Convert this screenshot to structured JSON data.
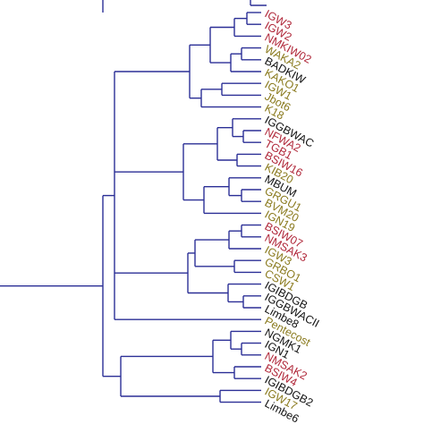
{
  "colors": {
    "branch": "#2b2f96",
    "label_black": "#111111",
    "label_red": "#b0283a",
    "label_olive": "#8a7a1e"
  },
  "leaves": [
    {
      "label": "IGW3",
      "color": "red"
    },
    {
      "label": "IGW2",
      "color": "red"
    },
    {
      "label": "NMKIW02",
      "color": "red"
    },
    {
      "label": "WAKA2",
      "color": "olive"
    },
    {
      "label": "BADKIW",
      "color": "black"
    },
    {
      "label": "KAKO1",
      "color": "olive"
    },
    {
      "label": "IGW1",
      "color": "olive"
    },
    {
      "label": "Jbot6",
      "color": "olive"
    },
    {
      "label": "K18",
      "color": "olive"
    },
    {
      "label": "IGGBWAC",
      "color": "black"
    },
    {
      "label": "NFWA2",
      "color": "red"
    },
    {
      "label": "TGB1",
      "color": "red"
    },
    {
      "label": "BSIW16",
      "color": "red"
    },
    {
      "label": "KIB20",
      "color": "olive"
    },
    {
      "label": "MBUM",
      "color": "black"
    },
    {
      "label": "GRGU1",
      "color": "olive"
    },
    {
      "label": "BVM20",
      "color": "olive"
    },
    {
      "label": "IGN19",
      "color": "olive"
    },
    {
      "label": "BSIW07",
      "color": "red"
    },
    {
      "label": "NMSAK3",
      "color": "red"
    },
    {
      "label": "IGW3",
      "color": "olive"
    },
    {
      "label": "GRBO1",
      "color": "olive"
    },
    {
      "label": "CSW1",
      "color": "olive"
    },
    {
      "label": "IGIBDGB",
      "color": "black"
    },
    {
      "label": "IGGBWACII",
      "color": "black"
    },
    {
      "label": "Limbe8",
      "color": "black"
    },
    {
      "label": "Pentecost",
      "color": "olive"
    },
    {
      "label": "NGMK1",
      "color": "black"
    },
    {
      "label": "IGN1",
      "color": "black"
    },
    {
      "label": "NMSAK2",
      "color": "red"
    },
    {
      "label": "BSIW4",
      "color": "red"
    },
    {
      "label": "IGIBDGB2",
      "color": "black"
    },
    {
      "label": "IGW17",
      "color": "olive"
    },
    {
      "label": "Limbe6",
      "color": "black"
    }
  ]
}
